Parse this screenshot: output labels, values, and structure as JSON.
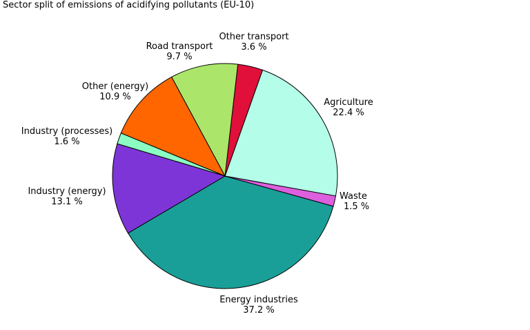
{
  "chart_data": {
    "type": "pie",
    "title": "Sector split of emissions of acidifying pollutants (EU-10)",
    "slices": [
      {
        "name": "Energy industries",
        "percent_label": "37.2 %",
        "value": 37.2,
        "color": "#1a9f98"
      },
      {
        "name": "Waste",
        "percent_label": "1.5 %",
        "value": 1.5,
        "color": "#dc5fde"
      },
      {
        "name": "Agriculture",
        "percent_label": "22.4 %",
        "value": 22.4,
        "color": "#b3fde9"
      },
      {
        "name": "Other transport",
        "percent_label": "3.6 %",
        "value": 3.6,
        "color": "#e0103a"
      },
      {
        "name": "Road transport",
        "percent_label": "9.7 %",
        "value": 9.7,
        "color": "#abe66a"
      },
      {
        "name": "Other (energy)",
        "percent_label": "10.9 %",
        "value": 10.9,
        "color": "#ff6600"
      },
      {
        "name": "Industry (processes)",
        "percent_label": "1.6 %",
        "value": 1.6,
        "color": "#8bfdc2"
      },
      {
        "name": "Industry (energy)",
        "percent_label": "13.1 %",
        "value": 13.1,
        "color": "#7e35d8"
      }
    ]
  }
}
